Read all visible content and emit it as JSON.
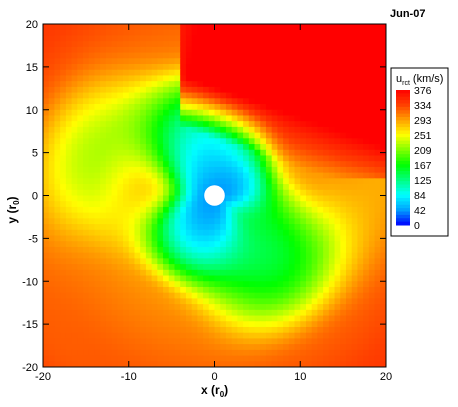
{
  "chart_data": {
    "type": "heatmap",
    "title": "Jun-07",
    "xlabel": "x (r",
    "xlabel_sub": "0",
    "xlabel_close": ")",
    "ylabel": "y (r",
    "ylabel_sub": "0",
    "ylabel_close": ")",
    "xlim": [
      -20,
      20
    ],
    "ylim": [
      -20,
      20
    ],
    "xticks": [
      -20,
      -10,
      0,
      10,
      20
    ],
    "yticks": [
      -20,
      -15,
      -10,
      -5,
      0,
      5,
      10,
      15,
      20
    ],
    "grid": false,
    "colorbar": {
      "title": "u",
      "title_sub": "rct",
      "title_unit": "(km/s)",
      "placement": "right",
      "range": [
        0,
        376
      ],
      "ticks": [
        "376",
        "334",
        "293",
        "251",
        "209",
        "167",
        "125",
        "84",
        "42",
        "0"
      ],
      "colors": [
        "#0000ff",
        "#00a0ff",
        "#00ffff",
        "#00ff80",
        "#00ff00",
        "#80ff00",
        "#ffff00",
        "#ffa000",
        "#ff4000",
        "#ff0000"
      ]
    },
    "field": {
      "description_free": true,
      "background_value": 300,
      "center_hole_radius": 1.2,
      "low_speed_core": {
        "x": 0,
        "y": 0,
        "value": 40,
        "radius": 4
      },
      "high_speed_region": {
        "x_range": [
          0,
          20
        ],
        "y_range": [
          5,
          20
        ],
        "value": 376
      }
    }
  }
}
